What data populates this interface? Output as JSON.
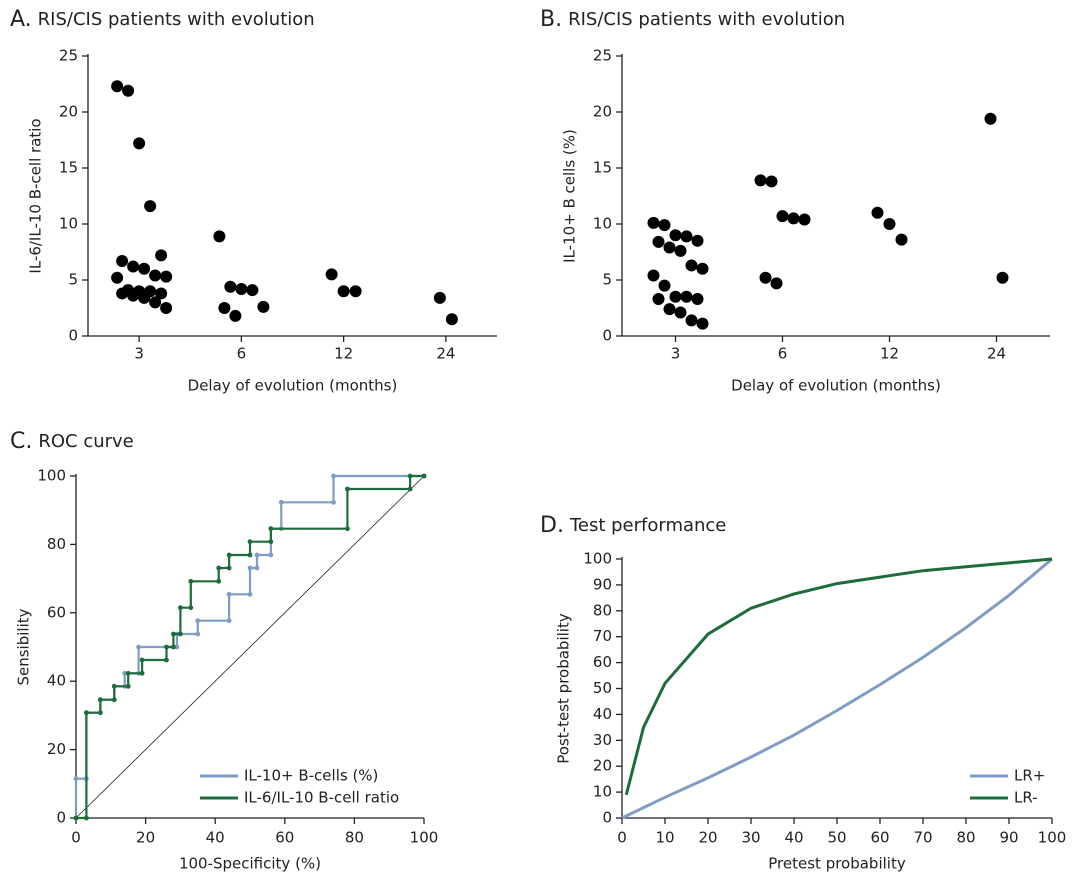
{
  "chart_data": [
    {
      "type": "strip",
      "panel": "A.",
      "title": "RIS/CIS patients with evolution",
      "xlabel": "Delay of evolution (months)",
      "ylabel": "IL-6/IL-10 B-cell ratio",
      "categories": [
        "3",
        "6",
        "12",
        "24"
      ],
      "groups": [
        [
          22.3,
          21.9,
          17.2,
          11.6,
          7.2,
          6.7,
          6.2,
          6.0,
          5.4,
          5.3,
          5.2,
          4.1,
          4.0,
          4.0,
          3.8,
          3.8,
          3.6,
          3.4,
          3.0,
          2.5
        ],
        [
          8.9,
          4.4,
          4.2,
          4.1,
          2.6,
          2.5,
          1.8
        ],
        [
          5.5,
          4.0,
          4.0
        ],
        [
          3.4,
          1.5
        ]
      ],
      "color": "#000000",
      "ylim": [
        0,
        25
      ],
      "yticks": [
        0,
        5,
        10,
        15,
        20,
        25
      ]
    },
    {
      "type": "strip",
      "panel": "B.",
      "title": "RIS/CIS patients with evolution",
      "xlabel": "Delay of evolution (months)",
      "ylabel": "IL-10+ B cells (%)",
      "categories": [
        "3",
        "6",
        "12",
        "24"
      ],
      "groups": [
        [
          10.1,
          9.9,
          9.0,
          8.9,
          8.5,
          8.4,
          7.9,
          7.6,
          6.3,
          6.0,
          5.4,
          4.5,
          3.5,
          3.5,
          3.3,
          3.3,
          2.4,
          2.1,
          1.4,
          1.1
        ],
        [
          13.9,
          13.8,
          10.7,
          10.5,
          10.4,
          5.2,
          4.7
        ],
        [
          11.0,
          10.0,
          8.6
        ],
        [
          19.4,
          5.2
        ]
      ],
      "color": "#000000",
      "ylim": [
        0,
        25
      ],
      "yticks": [
        0,
        5,
        10,
        15,
        20,
        25
      ]
    },
    {
      "type": "roc",
      "panel": "C.",
      "title": "ROC curve",
      "xlabel": "100-Specificity (%)",
      "ylabel": "Sensibility",
      "xlim": [
        0,
        100
      ],
      "xticks": [
        0,
        20,
        40,
        60,
        80,
        100
      ],
      "ylim": [
        0,
        100
      ],
      "yticks": [
        0,
        20,
        40,
        60,
        80,
        100
      ],
      "legend": "lower right",
      "series": [
        {
          "name": "IL-10+ B-cells (%)",
          "color": "#7f9cc4",
          "x": [
            0,
            0,
            3,
            3,
            7,
            7,
            11,
            11,
            14,
            14,
            18,
            18,
            29,
            29,
            35,
            35,
            44,
            44,
            50,
            50,
            52,
            52,
            56,
            56,
            59,
            59,
            74,
            74,
            100
          ],
          "values": [
            0,
            11.5,
            11.5,
            30.8,
            30.8,
            34.6,
            34.6,
            38.5,
            38.5,
            42.3,
            42.3,
            50,
            50,
            53.8,
            53.8,
            57.7,
            57.7,
            65.4,
            65.4,
            73.1,
            73.1,
            76.9,
            76.9,
            84.6,
            84.6,
            92.3,
            92.3,
            100,
            100
          ]
        },
        {
          "name": "IL-6/IL-10 B-cell ratio",
          "color": "#1e6b3c",
          "x": [
            0,
            3,
            3,
            7,
            7,
            11,
            11,
            15,
            15,
            19,
            19,
            26,
            26,
            28,
            28,
            30,
            30,
            33,
            33,
            41,
            41,
            44,
            44,
            50,
            50,
            56,
            56,
            78,
            78,
            96,
            96,
            100
          ],
          "values": [
            0,
            0,
            30.8,
            30.8,
            34.6,
            34.6,
            38.5,
            38.5,
            42.3,
            42.3,
            46.2,
            46.2,
            50,
            50,
            53.8,
            53.8,
            61.5,
            61.5,
            69.2,
            69.2,
            73.1,
            73.1,
            76.9,
            76.9,
            80.8,
            80.8,
            84.6,
            84.6,
            96.2,
            96.2,
            100,
            100
          ]
        }
      ]
    },
    {
      "type": "line",
      "panel": "D.",
      "title": "Test performance",
      "xlabel": "Pretest probability",
      "ylabel": "Post-test probability",
      "xlim": [
        0,
        100
      ],
      "xticks": [
        0,
        10,
        20,
        30,
        40,
        50,
        60,
        70,
        80,
        90,
        100
      ],
      "ylim": [
        0,
        100
      ],
      "yticks": [
        0,
        10,
        20,
        30,
        40,
        50,
        60,
        70,
        80,
        90,
        100
      ],
      "legend": "lower right",
      "series": [
        {
          "name": "LR+",
          "color": "#7f9cc4",
          "x": [
            0,
            10,
            20,
            30,
            40,
            50,
            60,
            70,
            80,
            90,
            100
          ],
          "values": [
            0,
            8,
            15.5,
            23.5,
            32,
            41.5,
            51.5,
            62,
            73.5,
            86,
            100
          ]
        },
        {
          "name": "LR-",
          "color": "#1e6b3c",
          "x": [
            1,
            5,
            10,
            20,
            30,
            40,
            50,
            60,
            70,
            80,
            90,
            100
          ],
          "values": [
            9,
            35,
            52,
            71,
            81,
            86.5,
            90.5,
            93,
            95.5,
            97,
            98.5,
            100
          ]
        }
      ]
    }
  ]
}
